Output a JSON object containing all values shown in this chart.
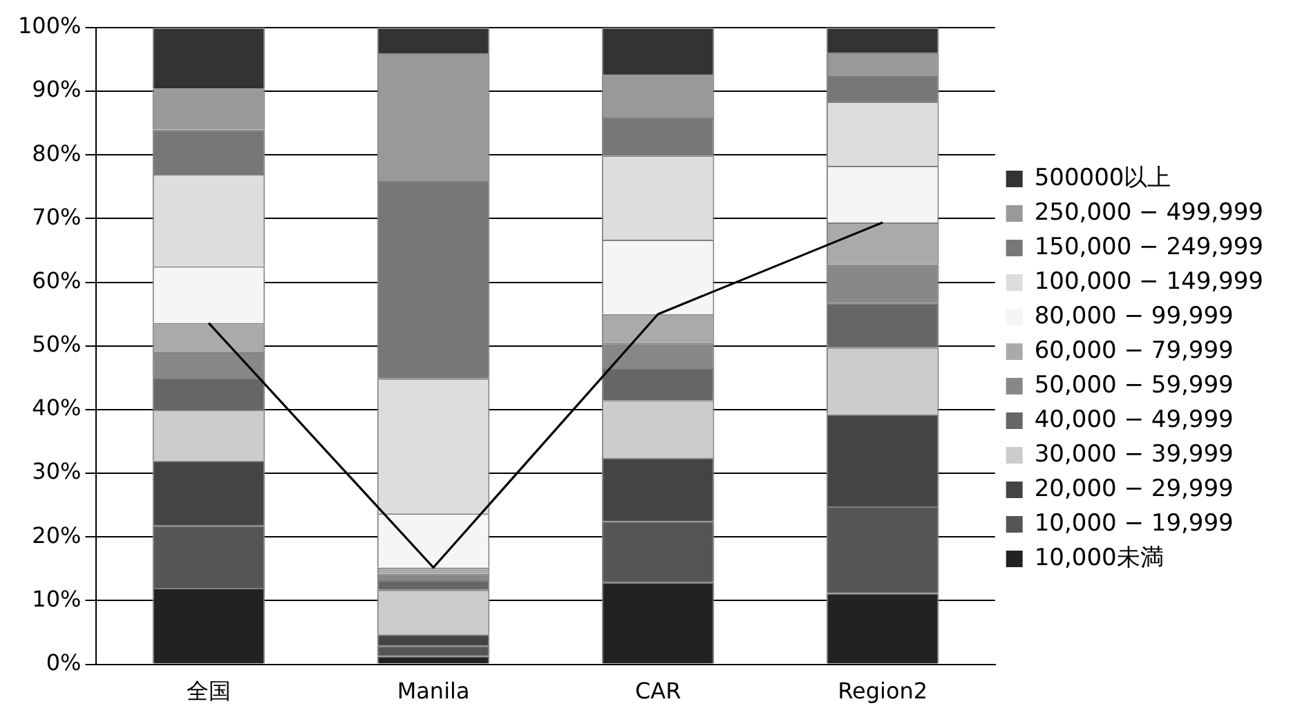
{
  "chart_data": {
    "type": "bar",
    "stacked": true,
    "categories": [
      "全国",
      "Manila",
      "CAR",
      "Region2"
    ],
    "series": [
      {
        "name": "10,000未満",
        "color": "#222222",
        "values": [
          12,
          1.3,
          12.9,
          11.2
        ]
      },
      {
        "name": "10,000 − 19,999",
        "color": "#555555",
        "values": [
          9.8,
          1.6,
          9.6,
          13.6
        ]
      },
      {
        "name": "20,000 − 29,999",
        "color": "#444444",
        "values": [
          10.2,
          1.8,
          9.9,
          14.5
        ]
      },
      {
        "name": "30,000 − 39,999",
        "color": "#cccccc",
        "values": [
          8,
          7,
          9.1,
          10.5
        ]
      },
      {
        "name": "40,000 − 49,999",
        "color": "#666666",
        "values": [
          5,
          1.5,
          5,
          7
        ]
      },
      {
        "name": "50,000 − 59,999",
        "color": "#888888",
        "values": [
          4,
          1,
          4,
          6
        ]
      },
      {
        "name": "60,000 − 79,999",
        "color": "#aaaaaa",
        "values": [
          4.6,
          1,
          4.5,
          6.6
        ]
      },
      {
        "name": "80,000 − 99,999",
        "color": "#f5f5f5",
        "values": [
          8.9,
          8.5,
          11.7,
          8.9
        ]
      },
      {
        "name": "100,000 − 149,999",
        "color": "#dddddd",
        "values": [
          14.5,
          21.2,
          13.2,
          10.1
        ]
      },
      {
        "name": "150,000 − 249,999",
        "color": "#777777",
        "values": [
          7,
          31,
          6,
          4
        ]
      },
      {
        "name": "250,000 − 499,999",
        "color": "#999999",
        "values": [
          6.4,
          20,
          6.7,
          3.6
        ]
      },
      {
        "name": "500000以上",
        "color": "#333333",
        "values": [
          9.6,
          4.1,
          7.4,
          4
        ]
      },
      {
        "type": "line",
        "color": "#000000",
        "values": [
          53.6,
          15.2,
          55,
          69.4
        ]
      }
    ],
    "ylim": [
      0,
      100
    ],
    "yticks": [
      {
        "value": 0,
        "label": "0%"
      },
      {
        "value": 10,
        "label": "10%"
      },
      {
        "value": 20,
        "label": "20%"
      },
      {
        "value": 30,
        "label": "30%"
      },
      {
        "value": 40,
        "label": "40%"
      },
      {
        "value": 50,
        "label": "50%"
      },
      {
        "value": 60,
        "label": "60%"
      },
      {
        "value": 70,
        "label": "70%"
      },
      {
        "value": 80,
        "label": "80%"
      },
      {
        "value": 90,
        "label": "90%"
      },
      {
        "value": 100,
        "label": "100%"
      }
    ],
    "grid": "y",
    "legend": "right",
    "marker": "none"
  }
}
